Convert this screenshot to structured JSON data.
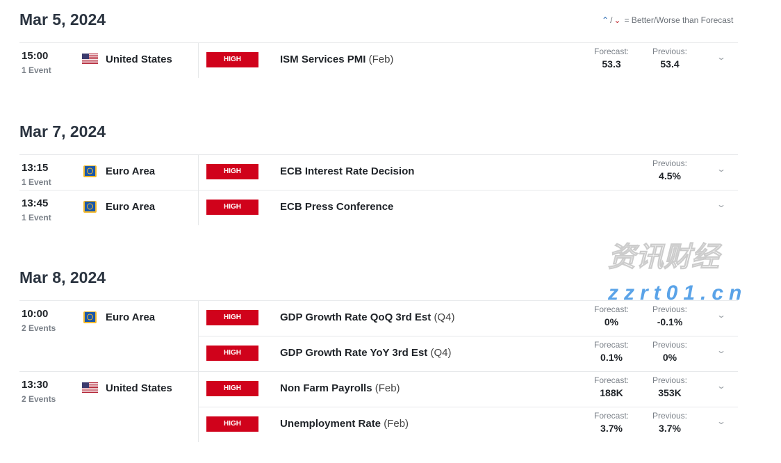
{
  "legend": {
    "up_icon": "better-than-forecast-icon",
    "down_icon": "worse-than-forecast-icon",
    "text": "= Better/Worse than Forecast",
    "sep": "/"
  },
  "days": [
    {
      "date": "Mar 5, 2024",
      "groups": [
        {
          "time": "15:00",
          "count": "1 Event",
          "country": "United States",
          "flag": "us",
          "events": [
            {
              "impact": "HIGH",
              "name": "ISM Services PMI",
              "period": "(Feb)",
              "forecast_label": "Forecast:",
              "forecast": "53.3",
              "previous_label": "Previous:",
              "previous": "53.4"
            }
          ]
        }
      ]
    },
    {
      "date": "Mar 7, 2024",
      "groups": [
        {
          "time": "13:15",
          "count": "1 Event",
          "country": "Euro Area",
          "flag": "eu",
          "events": [
            {
              "impact": "HIGH",
              "name": "ECB Interest Rate Decision",
              "period": "",
              "forecast_label": "",
              "forecast": "",
              "previous_label": "Previous:",
              "previous": "4.5%"
            }
          ]
        },
        {
          "time": "13:45",
          "count": "1 Event",
          "country": "Euro Area",
          "flag": "eu",
          "events": [
            {
              "impact": "HIGH",
              "name": "ECB Press Conference",
              "period": "",
              "forecast_label": "",
              "forecast": "",
              "previous_label": "",
              "previous": ""
            }
          ]
        }
      ]
    },
    {
      "date": "Mar 8, 2024",
      "groups": [
        {
          "time": "10:00",
          "count": "2 Events",
          "country": "Euro Area",
          "flag": "eu",
          "events": [
            {
              "impact": "HIGH",
              "name": "GDP Growth Rate QoQ 3rd Est",
              "period": "(Q4)",
              "forecast_label": "Forecast:",
              "forecast": "0%",
              "previous_label": "Previous:",
              "previous": "-0.1%"
            },
            {
              "impact": "HIGH",
              "name": "GDP Growth Rate YoY 3rd Est",
              "period": "(Q4)",
              "forecast_label": "Forecast:",
              "forecast": "0.1%",
              "previous_label": "Previous:",
              "previous": "0%"
            }
          ]
        },
        {
          "time": "13:30",
          "count": "2 Events",
          "country": "United States",
          "flag": "us",
          "events": [
            {
              "impact": "HIGH",
              "name": "Non Farm Payrolls",
              "period": "(Feb)",
              "forecast_label": "Forecast:",
              "forecast": "188K",
              "previous_label": "Previous:",
              "previous": "353K"
            },
            {
              "impact": "HIGH",
              "name": "Unemployment Rate",
              "period": "(Feb)",
              "forecast_label": "Forecast:",
              "forecast": "3.7%",
              "previous_label": "Previous:",
              "previous": "3.7%"
            }
          ]
        }
      ]
    }
  ],
  "watermark": {
    "text": "zzrt01.cn"
  },
  "colors": {
    "impact_high": "#d0021b",
    "better": "#2f6fb5",
    "worse": "#c0272d"
  }
}
